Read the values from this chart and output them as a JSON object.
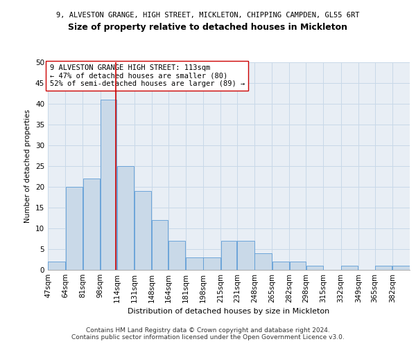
{
  "title1": "9, ALVESTON GRANGE, HIGH STREET, MICKLETON, CHIPPING CAMPDEN, GL55 6RT",
  "title2": "Size of property relative to detached houses in Mickleton",
  "xlabel": "Distribution of detached houses by size in Mickleton",
  "ylabel": "Number of detached properties",
  "footer1": "Contains HM Land Registry data © Crown copyright and database right 2024.",
  "footer2": "Contains public sector information licensed under the Open Government Licence v3.0.",
  "annotation_line1": "9 ALVESTON GRANGE HIGH STREET: 113sqm",
  "annotation_line2": "← 47% of detached houses are smaller (80)",
  "annotation_line3": "52% of semi-detached houses are larger (89) →",
  "bar_color": "#c9d9e8",
  "bar_edge_color": "#5b9bd5",
  "vline_color": "#cc0000",
  "vline_x": 113,
  "categories": [
    "47sqm",
    "64sqm",
    "81sqm",
    "98sqm",
    "114sqm",
    "131sqm",
    "148sqm",
    "164sqm",
    "181sqm",
    "198sqm",
    "215sqm",
    "231sqm",
    "248sqm",
    "265sqm",
    "282sqm",
    "298sqm",
    "315sqm",
    "332sqm",
    "349sqm",
    "365sqm",
    "382sqm"
  ],
  "bin_edges": [
    47,
    64,
    81,
    98,
    114,
    131,
    148,
    164,
    181,
    198,
    215,
    231,
    248,
    265,
    282,
    298,
    315,
    332,
    349,
    365,
    382,
    399
  ],
  "values": [
    2,
    20,
    22,
    41,
    25,
    19,
    12,
    7,
    3,
    3,
    7,
    7,
    4,
    2,
    2,
    1,
    0,
    1,
    0,
    1,
    1
  ],
  "ylim": [
    0,
    50
  ],
  "yticks": [
    0,
    5,
    10,
    15,
    20,
    25,
    30,
    35,
    40,
    45,
    50
  ],
  "background_color": "#ffffff",
  "grid_color": "#c8d8e8",
  "title1_fontsize": 7.5,
  "title2_fontsize": 9,
  "axis_fontsize": 7.5,
  "annotation_fontsize": 7.5,
  "xlabel_fontsize": 8,
  "ylabel_fontsize": 7.5
}
